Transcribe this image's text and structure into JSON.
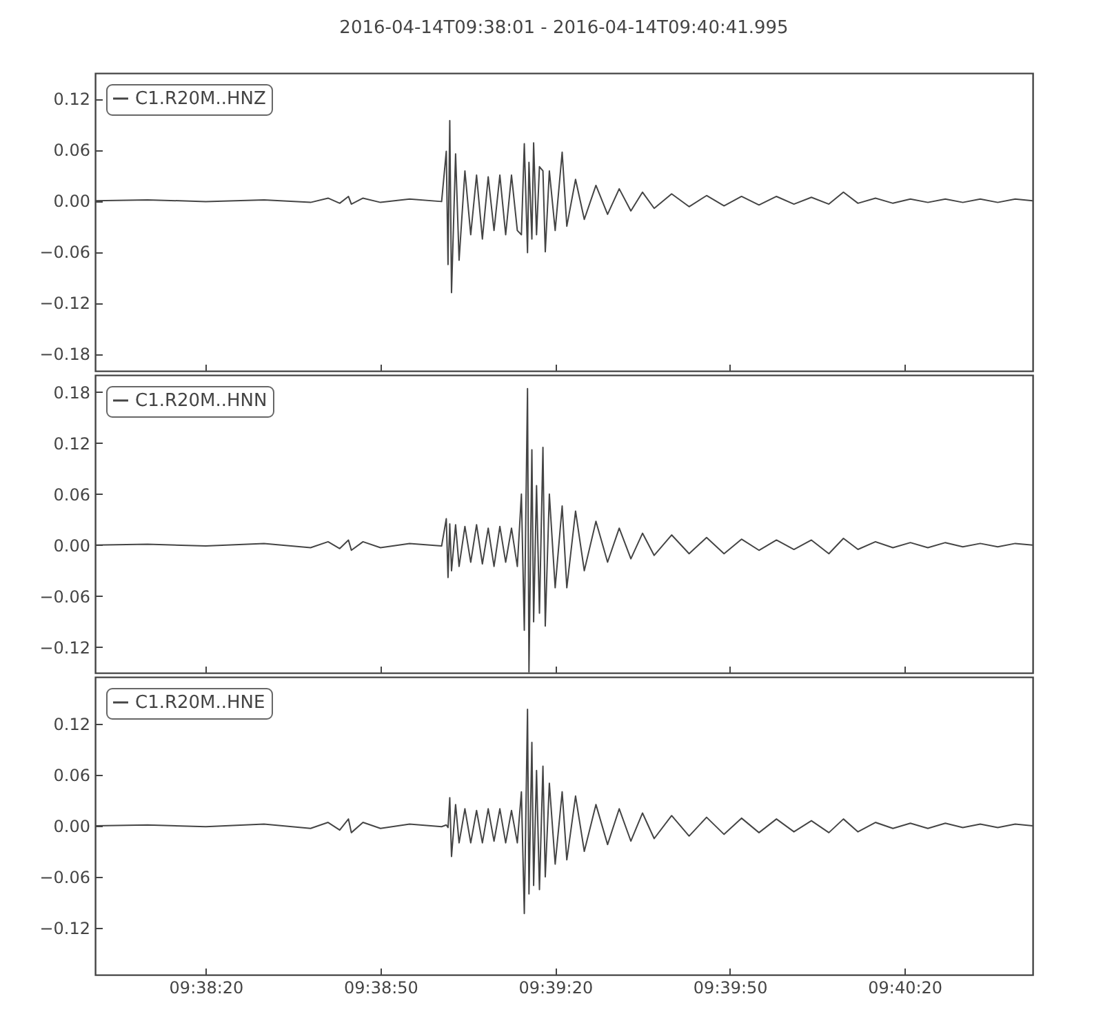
{
  "chart_data": [
    {
      "type": "line",
      "title": "2016-04-14T09:38:01  -  2016-04-14T09:40:41.995",
      "legend": "top left",
      "tick_labels": "y",
      "grid": false,
      "x": [
        "2016-04-14T09:38:01",
        "2016-04-14T09:38:10",
        "2016-04-14T09:38:20",
        "2016-04-14T09:38:30",
        "2016-04-14T09:38:38",
        "2016-04-14T09:38:41",
        "2016-04-14T09:38:43",
        "2016-04-14T09:38:44.500",
        "2016-04-14T09:38:45",
        "2016-04-14T09:38:47",
        "2016-04-14T09:38:50",
        "2016-04-14T09:38:55",
        "2016-04-14T09:39:00.500",
        "2016-04-14T09:39:01.300",
        "2016-04-14T09:39:01.600",
        "2016-04-14T09:39:01.900",
        "2016-04-14T09:39:02.200",
        "2016-04-14T09:39:02.900",
        "2016-04-14T09:39:03.500",
        "2016-04-14T09:39:04.500",
        "2016-04-14T09:39:05.500",
        "2016-04-14T09:39:06.500",
        "2016-04-14T09:39:07.500",
        "2016-04-14T09:39:08.500",
        "2016-04-14T09:39:09.500",
        "2016-04-14T09:39:10.500",
        "2016-04-14T09:39:11.500",
        "2016-04-14T09:39:12.500",
        "2016-04-14T09:39:13.500",
        "2016-04-14T09:39:14.200",
        "2016-04-14T09:39:14.700",
        "2016-04-14T09:39:15.250",
        "2016-04-14T09:39:15.500",
        "2016-04-14T09:39:16",
        "2016-04-14T09:39:16.300",
        "2016-04-14T09:39:16.800",
        "2016-04-14T09:39:17.300",
        "2016-04-14T09:39:17.900",
        "2016-04-14T09:39:18.300",
        "2016-04-14T09:39:19",
        "2016-04-14T09:39:20",
        "2016-04-14T09:39:21.200",
        "2016-04-14T09:39:22",
        "2016-04-14T09:39:23.500",
        "2016-04-14T09:39:25",
        "2016-04-14T09:39:27",
        "2016-04-14T09:39:29",
        "2016-04-14T09:39:31",
        "2016-04-14T09:39:33",
        "2016-04-14T09:39:35",
        "2016-04-14T09:39:37",
        "2016-04-14T09:39:40",
        "2016-04-14T09:39:43",
        "2016-04-14T09:39:46",
        "2016-04-14T09:39:49",
        "2016-04-14T09:39:52",
        "2016-04-14T09:39:55",
        "2016-04-14T09:39:58",
        "2016-04-14T09:40:01",
        "2016-04-14T09:40:04",
        "2016-04-14T09:40:07",
        "2016-04-14T09:40:09.500",
        "2016-04-14T09:40:12",
        "2016-04-14T09:40:15",
        "2016-04-14T09:40:18",
        "2016-04-14T09:40:21",
        "2016-04-14T09:40:24",
        "2016-04-14T09:40:27",
        "2016-04-14T09:40:30",
        "2016-04-14T09:40:33",
        "2016-04-14T09:40:36",
        "2016-04-14T09:40:39",
        "2016-04-14T09:40:42"
      ],
      "xlim": [
        "2016-04-14T09:38:01",
        "2016-04-14T09:40:42"
      ],
      "xticks": [
        {
          "value": "2016-04-14T09:38:20",
          "label": null
        },
        {
          "value": "2016-04-14T09:38:50",
          "label": null
        },
        {
          "value": "2016-04-14T09:39:20",
          "label": null
        },
        {
          "value": "2016-04-14T09:39:50",
          "label": null
        },
        {
          "value": "2016-04-14T09:40:20",
          "label": null
        }
      ],
      "ylim": [
        -0.2,
        0.15
      ],
      "yticks": [
        {
          "value": -0.18,
          "label": "−0.18"
        },
        {
          "value": -0.12,
          "label": "−0.12"
        },
        {
          "value": -0.06,
          "label": "−0.06"
        },
        {
          "value": 0,
          "label": "0.00"
        },
        0.06,
        0.12
      ],
      "series": [
        {
          "name": "C1.R20M..HNZ",
          "color": "#444444",
          "values": [
            0,
            0.001,
            -0.001,
            0.001,
            -0.002,
            0.003,
            -0.003,
            0.005,
            -0.004,
            0.003,
            -0.002,
            0.002,
            -0.001,
            0.058,
            -0.075,
            0.094,
            -0.108,
            0.055,
            -0.07,
            0.035,
            -0.04,
            0.03,
            -0.045,
            0.028,
            -0.035,
            0.03,
            -0.04,
            0.03,
            -0.035,
            -0.04,
            0.067,
            -0.061,
            0.045,
            -0.045,
            0.068,
            -0.04,
            0.04,
            0.035,
            -0.06,
            0.035,
            -0.035,
            0.057,
            -0.03,
            0.025,
            -0.022,
            0.018,
            -0.016,
            0.014,
            -0.012,
            0.01,
            -0.009,
            0.008,
            -0.007,
            0.006,
            -0.006,
            0.005,
            -0.005,
            0.005,
            -0.004,
            0.004,
            -0.004,
            0.01,
            -0.003,
            0.003,
            -0.003,
            0.002,
            -0.002,
            0.002,
            -0.002,
            0.002,
            -0.002,
            0.002,
            0
          ]
        }
      ]
    },
    {
      "type": "line",
      "legend": "top left",
      "tick_labels": "y",
      "grid": false,
      "x": [
        "2016-04-14T09:38:01",
        "2016-04-14T09:38:10",
        "2016-04-14T09:38:20",
        "2016-04-14T09:38:30",
        "2016-04-14T09:38:38",
        "2016-04-14T09:38:41",
        "2016-04-14T09:38:43",
        "2016-04-14T09:38:44.500",
        "2016-04-14T09:38:45",
        "2016-04-14T09:38:47",
        "2016-04-14T09:38:50",
        "2016-04-14T09:38:55",
        "2016-04-14T09:39:00.500",
        "2016-04-14T09:39:01.300",
        "2016-04-14T09:39:01.600",
        "2016-04-14T09:39:01.900",
        "2016-04-14T09:39:02.200",
        "2016-04-14T09:39:02.900",
        "2016-04-14T09:39:03.500",
        "2016-04-14T09:39:04.500",
        "2016-04-14T09:39:05.500",
        "2016-04-14T09:39:06.500",
        "2016-04-14T09:39:07.500",
        "2016-04-14T09:39:08.500",
        "2016-04-14T09:39:09.500",
        "2016-04-14T09:39:10.500",
        "2016-04-14T09:39:11.500",
        "2016-04-14T09:39:12.500",
        "2016-04-14T09:39:13.500",
        "2016-04-14T09:39:14.200",
        "2016-04-14T09:39:14.700",
        "2016-04-14T09:39:15.250",
        "2016-04-14T09:39:15.500",
        "2016-04-14T09:39:16",
        "2016-04-14T09:39:16.300",
        "2016-04-14T09:39:16.800",
        "2016-04-14T09:39:17.300",
        "2016-04-14T09:39:17.900",
        "2016-04-14T09:39:18.300",
        "2016-04-14T09:39:19",
        "2016-04-14T09:39:20",
        "2016-04-14T09:39:21.200",
        "2016-04-14T09:39:22",
        "2016-04-14T09:39:23.500",
        "2016-04-14T09:39:25",
        "2016-04-14T09:39:27",
        "2016-04-14T09:39:29",
        "2016-04-14T09:39:31",
        "2016-04-14T09:39:33",
        "2016-04-14T09:39:35",
        "2016-04-14T09:39:37",
        "2016-04-14T09:39:40",
        "2016-04-14T09:39:43",
        "2016-04-14T09:39:46",
        "2016-04-14T09:39:49",
        "2016-04-14T09:39:52",
        "2016-04-14T09:39:55",
        "2016-04-14T09:39:58",
        "2016-04-14T09:40:01",
        "2016-04-14T09:40:04",
        "2016-04-14T09:40:07",
        "2016-04-14T09:40:09.500",
        "2016-04-14T09:40:12",
        "2016-04-14T09:40:15",
        "2016-04-14T09:40:18",
        "2016-04-14T09:40:21",
        "2016-04-14T09:40:24",
        "2016-04-14T09:40:27",
        "2016-04-14T09:40:30",
        "2016-04-14T09:40:33",
        "2016-04-14T09:40:36",
        "2016-04-14T09:40:39",
        "2016-04-14T09:40:42"
      ],
      "xlim": [
        "2016-04-14T09:38:01",
        "2016-04-14T09:40:42"
      ],
      "xticks": [
        {
          "value": "2016-04-14T09:38:20",
          "label": null
        },
        {
          "value": "2016-04-14T09:38:50",
          "label": null
        },
        {
          "value": "2016-04-14T09:39:20",
          "label": null
        },
        {
          "value": "2016-04-14T09:39:50",
          "label": null
        },
        {
          "value": "2016-04-14T09:40:20",
          "label": null
        }
      ],
      "ylim": [
        -0.15,
        0.2
      ],
      "yticks": [
        {
          "value": -0.12,
          "label": "−0.12"
        },
        {
          "value": -0.06,
          "label": "−0.06"
        },
        {
          "value": 0,
          "label": "0.00"
        },
        0.06,
        0.12,
        0.18
      ],
      "series": [
        {
          "name": "C1.R20M..HNN",
          "color": "#444444",
          "values": [
            0,
            0.001,
            -0.001,
            0.002,
            -0.003,
            0.004,
            -0.004,
            0.006,
            -0.006,
            0.004,
            -0.003,
            0.002,
            -0.001,
            0.031,
            -0.038,
            0.025,
            -0.03,
            0.024,
            -0.025,
            0.022,
            -0.02,
            0.024,
            -0.022,
            0.02,
            -0.025,
            0.022,
            -0.02,
            0.02,
            -0.025,
            0.06,
            -0.1,
            0.184,
            -0.149,
            0.112,
            -0.09,
            0.07,
            -0.08,
            0.115,
            -0.095,
            0.06,
            -0.05,
            0.046,
            -0.05,
            0.04,
            -0.03,
            0.028,
            -0.02,
            0.02,
            -0.016,
            0.014,
            -0.012,
            0.012,
            -0.01,
            0.009,
            -0.01,
            0.007,
            -0.006,
            0.006,
            -0.005,
            0.006,
            -0.01,
            0.008,
            -0.005,
            0.004,
            -0.003,
            0.003,
            -0.003,
            0.003,
            -0.002,
            0.002,
            -0.002,
            0.002,
            0
          ]
        }
      ]
    },
    {
      "type": "line",
      "legend": "top left",
      "grid": false,
      "x": [
        "2016-04-14T09:38:01",
        "2016-04-14T09:38:10",
        "2016-04-14T09:38:20",
        "2016-04-14T09:38:30",
        "2016-04-14T09:38:38",
        "2016-04-14T09:38:41",
        "2016-04-14T09:38:43",
        "2016-04-14T09:38:44.500",
        "2016-04-14T09:38:45",
        "2016-04-14T09:38:47",
        "2016-04-14T09:38:50",
        "2016-04-14T09:38:55",
        "2016-04-14T09:39:00.500",
        "2016-04-14T09:39:01.300",
        "2016-04-14T09:39:01.600",
        "2016-04-14T09:39:01.900",
        "2016-04-14T09:39:02.200",
        "2016-04-14T09:39:02.900",
        "2016-04-14T09:39:03.500",
        "2016-04-14T09:39:04.500",
        "2016-04-14T09:39:05.500",
        "2016-04-14T09:39:06.500",
        "2016-04-14T09:39:07.500",
        "2016-04-14T09:39:08.500",
        "2016-04-14T09:39:09.500",
        "2016-04-14T09:39:10.500",
        "2016-04-14T09:39:11.500",
        "2016-04-14T09:39:12.500",
        "2016-04-14T09:39:13.500",
        "2016-04-14T09:39:14.200",
        "2016-04-14T09:39:14.700",
        "2016-04-14T09:39:15.250",
        "2016-04-14T09:39:15.500",
        "2016-04-14T09:39:16",
        "2016-04-14T09:39:16.300",
        "2016-04-14T09:39:16.800",
        "2016-04-14T09:39:17.300",
        "2016-04-14T09:39:17.900",
        "2016-04-14T09:39:18.300",
        "2016-04-14T09:39:19",
        "2016-04-14T09:39:20",
        "2016-04-14T09:39:21.200",
        "2016-04-14T09:39:22",
        "2016-04-14T09:39:23.500",
        "2016-04-14T09:39:25",
        "2016-04-14T09:39:27",
        "2016-04-14T09:39:29",
        "2016-04-14T09:39:31",
        "2016-04-14T09:39:33",
        "2016-04-14T09:39:35",
        "2016-04-14T09:39:37",
        "2016-04-14T09:39:40",
        "2016-04-14T09:39:43",
        "2016-04-14T09:39:46",
        "2016-04-14T09:39:49",
        "2016-04-14T09:39:52",
        "2016-04-14T09:39:55",
        "2016-04-14T09:39:58",
        "2016-04-14T09:40:01",
        "2016-04-14T09:40:04",
        "2016-04-14T09:40:07",
        "2016-04-14T09:40:09.500",
        "2016-04-14T09:40:12",
        "2016-04-14T09:40:15",
        "2016-04-14T09:40:18",
        "2016-04-14T09:40:21",
        "2016-04-14T09:40:24",
        "2016-04-14T09:40:27",
        "2016-04-14T09:40:30",
        "2016-04-14T09:40:33",
        "2016-04-14T09:40:36",
        "2016-04-14T09:40:39",
        "2016-04-14T09:40:42"
      ],
      "xlim": [
        "2016-04-14T09:38:01",
        "2016-04-14T09:40:42"
      ],
      "xticks": [
        {
          "value": "2016-04-14T09:38:20",
          "label": "09:38:20"
        },
        {
          "value": "2016-04-14T09:38:50",
          "label": "09:38:50"
        },
        {
          "value": "2016-04-14T09:39:20",
          "label": "09:39:20"
        },
        {
          "value": "2016-04-14T09:39:50",
          "label": "09:39:50"
        },
        {
          "value": "2016-04-14T09:40:20",
          "label": "09:40:20"
        }
      ],
      "ylim": [
        -0.175,
        0.175
      ],
      "yticks": [
        {
          "value": -0.12,
          "label": "−0.12"
        },
        {
          "value": -0.06,
          "label": "−0.06"
        },
        {
          "value": 0,
          "label": "0.00"
        },
        0.06,
        0.12
      ],
      "series": [
        {
          "name": "C1.R20M..HNE",
          "color": "#444444",
          "values": [
            0,
            0.001,
            -0.001,
            0.002,
            -0.003,
            0.004,
            -0.005,
            0.008,
            -0.008,
            0.004,
            -0.003,
            0.002,
            -0.001,
            0.001,
            -0.002,
            0.033,
            -0.036,
            0.025,
            -0.02,
            0.02,
            -0.02,
            0.018,
            -0.02,
            0.02,
            -0.018,
            0.02,
            -0.02,
            0.018,
            -0.02,
            0.04,
            -0.103,
            0.137,
            -0.08,
            0.098,
            -0.07,
            0.065,
            -0.075,
            0.07,
            -0.06,
            0.05,
            -0.045,
            0.04,
            -0.04,
            0.035,
            -0.03,
            0.025,
            -0.022,
            0.02,
            -0.018,
            0.015,
            -0.015,
            0.012,
            -0.012,
            0.01,
            -0.01,
            0.009,
            -0.008,
            0.008,
            -0.007,
            0.006,
            -0.008,
            0.008,
            -0.007,
            0.004,
            -0.003,
            0.003,
            -0.003,
            0.003,
            -0.002,
            0.002,
            -0.002,
            0.002,
            0
          ]
        }
      ]
    }
  ]
}
